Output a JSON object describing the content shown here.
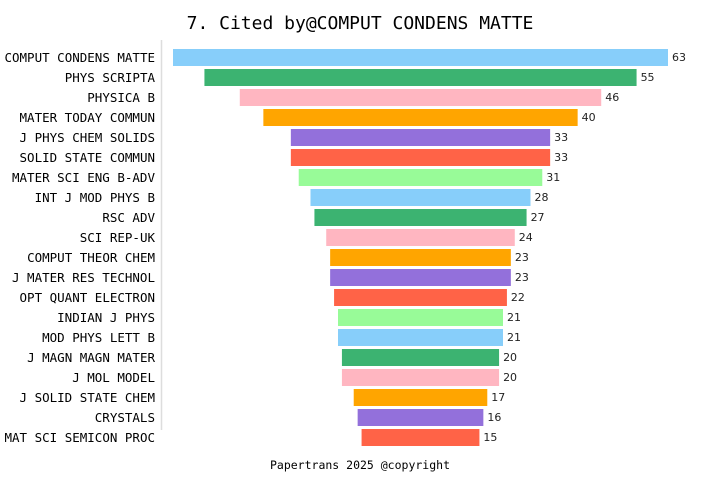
{
  "chart_data": {
    "type": "bar",
    "orientation": "horizontal-centered",
    "title": "7. Cited by@COMPUT CONDENS MATTE",
    "categories": [
      "COMPUT CONDENS MATTE",
      "PHYS SCRIPTA",
      "PHYSICA B",
      "MATER TODAY COMMUN",
      "J PHYS CHEM SOLIDS",
      "SOLID STATE COMMUN",
      "MATER SCI ENG B-ADV",
      "INT J MOD PHYS B",
      "RSC ADV",
      "SCI REP-UK",
      "COMPUT THEOR CHEM",
      "J MATER RES TECHNOL",
      "OPT QUANT ELECTRON",
      "INDIAN J PHYS",
      "MOD PHYS LETT B",
      "J MAGN MAGN MATER",
      "J MOL MODEL",
      "J SOLID STATE CHEM",
      "CRYSTALS",
      "MAT SCI SEMICON PROC"
    ],
    "values": [
      63,
      55,
      46,
      40,
      33,
      33,
      31,
      28,
      27,
      24,
      23,
      23,
      22,
      21,
      21,
      20,
      20,
      17,
      16,
      15
    ],
    "colors": [
      "#87CEFA",
      "#3CB371",
      "#FFB6C1",
      "#FFA500",
      "#9370DB",
      "#FF6347",
      "#98FB98"
    ],
    "data_labels": true,
    "grid": false,
    "footer": "Papertrans 2025 @copyright"
  }
}
